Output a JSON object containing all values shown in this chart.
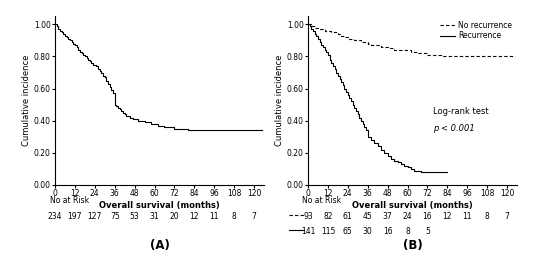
{
  "panel_A": {
    "title": "(A)",
    "ylabel": "Cumulative incidence",
    "xlabel": "Overall survival (months)",
    "ylim": [
      0.0,
      1.05
    ],
    "xlim": [
      0,
      126
    ],
    "xticks": [
      0,
      12,
      24,
      36,
      48,
      60,
      72,
      84,
      96,
      108,
      120
    ],
    "yticks": [
      0.0,
      0.2,
      0.4,
      0.6,
      0.8,
      1.0
    ],
    "no_at_risk_label": "No at Risk",
    "no_at_risk_values": [
      "234",
      "197",
      "127",
      "75",
      "53",
      "31",
      "20",
      "12",
      "11",
      "8",
      "7"
    ],
    "curve_x": [
      0,
      1,
      2,
      3,
      4,
      5,
      6,
      7,
      8,
      9,
      10,
      11,
      12,
      13,
      14,
      15,
      16,
      17,
      18,
      19,
      20,
      21,
      22,
      23,
      24,
      25,
      26,
      27,
      28,
      29,
      30,
      31,
      32,
      33,
      34,
      35,
      36,
      37,
      38,
      39,
      40,
      41,
      42,
      43,
      44,
      45,
      46,
      47,
      48,
      50,
      52,
      54,
      56,
      58,
      60,
      62,
      64,
      66,
      68,
      70,
      72,
      74,
      76,
      80,
      85,
      90,
      95,
      100,
      110,
      120,
      125
    ],
    "curve_y": [
      1.0,
      0.99,
      0.97,
      0.96,
      0.95,
      0.94,
      0.93,
      0.92,
      0.91,
      0.9,
      0.89,
      0.88,
      0.87,
      0.86,
      0.84,
      0.83,
      0.82,
      0.81,
      0.8,
      0.79,
      0.78,
      0.77,
      0.76,
      0.75,
      0.75,
      0.74,
      0.72,
      0.71,
      0.7,
      0.68,
      0.67,
      0.65,
      0.63,
      0.61,
      0.59,
      0.57,
      0.5,
      0.49,
      0.48,
      0.47,
      0.46,
      0.45,
      0.44,
      0.43,
      0.43,
      0.42,
      0.42,
      0.41,
      0.41,
      0.4,
      0.4,
      0.39,
      0.39,
      0.38,
      0.38,
      0.37,
      0.37,
      0.36,
      0.36,
      0.36,
      0.35,
      0.35,
      0.35,
      0.34,
      0.34,
      0.34,
      0.34,
      0.34,
      0.34,
      0.34,
      0.34
    ]
  },
  "panel_B": {
    "title": "(B)",
    "ylabel": "Cumulative incidence",
    "xlabel": "Overall survival (months)",
    "ylim": [
      0.0,
      1.05
    ],
    "xlim": [
      0,
      126
    ],
    "xticks": [
      0,
      12,
      24,
      36,
      48,
      60,
      72,
      84,
      96,
      108,
      120
    ],
    "yticks": [
      0.0,
      0.2,
      0.4,
      0.6,
      0.8,
      1.0
    ],
    "no_at_risk_label": "No at Risk",
    "no_at_risk_nodash": [
      "93",
      "82",
      "61",
      "45",
      "37",
      "24",
      "16",
      "12",
      "11",
      "8",
      "7"
    ],
    "no_at_risk_solid": [
      "141",
      "115",
      "65",
      "30",
      "16",
      "8",
      "5"
    ],
    "legend_no_recurrence": "No recurrence",
    "legend_recurrence": "Recurrence",
    "logrank_text": "Log-rank test",
    "pvalue_text": "p < 0.001",
    "curve_no_recurrence_x": [
      0,
      2,
      4,
      6,
      8,
      10,
      12,
      14,
      16,
      18,
      20,
      22,
      24,
      26,
      28,
      30,
      32,
      34,
      36,
      38,
      40,
      42,
      44,
      46,
      48,
      50,
      52,
      54,
      56,
      58,
      60,
      62,
      64,
      66,
      68,
      70,
      72,
      74,
      76,
      80,
      85,
      90,
      95,
      100,
      110,
      120,
      125
    ],
    "curve_no_recurrence_y": [
      1.0,
      0.99,
      0.98,
      0.97,
      0.97,
      0.96,
      0.96,
      0.95,
      0.95,
      0.94,
      0.93,
      0.92,
      0.91,
      0.91,
      0.9,
      0.9,
      0.89,
      0.89,
      0.88,
      0.87,
      0.87,
      0.87,
      0.86,
      0.86,
      0.85,
      0.85,
      0.84,
      0.84,
      0.84,
      0.84,
      0.84,
      0.83,
      0.83,
      0.82,
      0.82,
      0.82,
      0.81,
      0.81,
      0.81,
      0.8,
      0.8,
      0.8,
      0.8,
      0.8,
      0.8,
      0.8,
      0.8
    ],
    "curve_recurrence_x": [
      0,
      1,
      2,
      3,
      4,
      5,
      6,
      7,
      8,
      9,
      10,
      11,
      12,
      13,
      14,
      15,
      16,
      17,
      18,
      19,
      20,
      21,
      22,
      23,
      24,
      25,
      26,
      27,
      28,
      29,
      30,
      31,
      32,
      33,
      34,
      35,
      36,
      38,
      40,
      42,
      44,
      46,
      48,
      50,
      52,
      54,
      56,
      58,
      60,
      62,
      64,
      66,
      68,
      70,
      72,
      74,
      76,
      78,
      80,
      82,
      84
    ],
    "curve_recurrence_y": [
      1.0,
      0.99,
      0.97,
      0.96,
      0.94,
      0.93,
      0.91,
      0.89,
      0.87,
      0.86,
      0.84,
      0.83,
      0.81,
      0.78,
      0.76,
      0.74,
      0.72,
      0.7,
      0.68,
      0.66,
      0.64,
      0.62,
      0.6,
      0.58,
      0.56,
      0.54,
      0.52,
      0.5,
      0.48,
      0.46,
      0.44,
      0.42,
      0.4,
      0.38,
      0.36,
      0.34,
      0.3,
      0.28,
      0.26,
      0.24,
      0.22,
      0.2,
      0.18,
      0.16,
      0.15,
      0.14,
      0.13,
      0.12,
      0.11,
      0.1,
      0.09,
      0.09,
      0.08,
      0.08,
      0.08,
      0.08,
      0.08,
      0.08,
      0.08,
      0.08,
      0.08
    ]
  },
  "figure_bg": "#ffffff",
  "axes_bg": "#ffffff",
  "line_color": "#000000"
}
